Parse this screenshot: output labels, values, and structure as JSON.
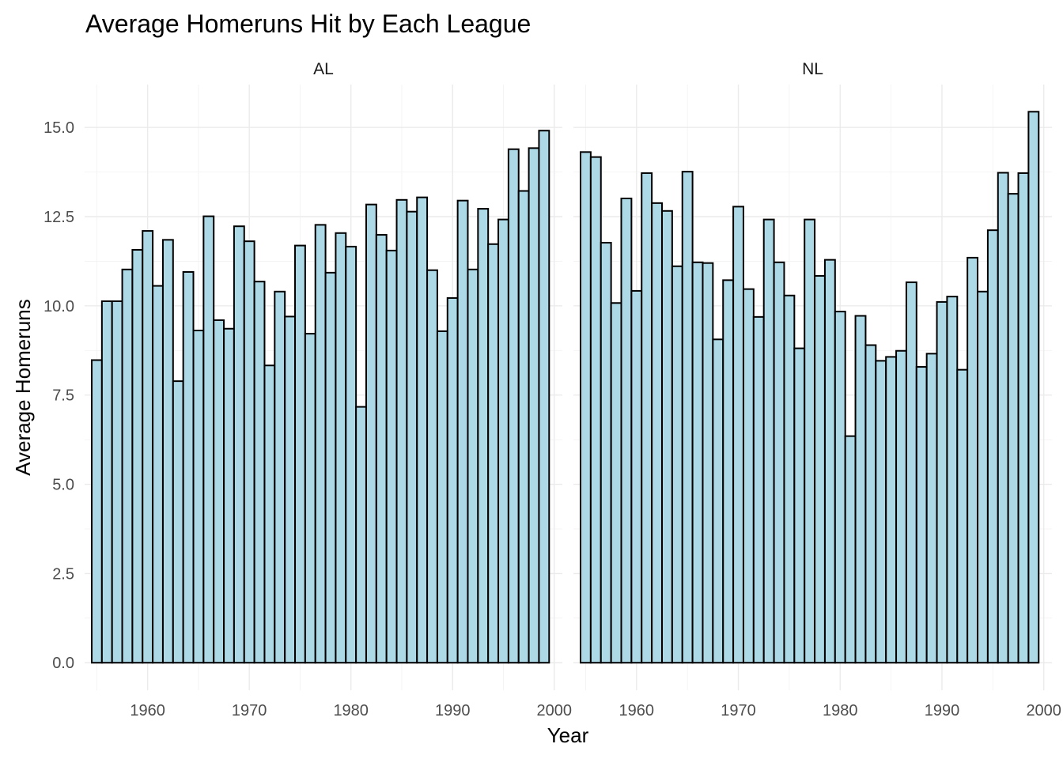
{
  "chart_data": {
    "type": "bar",
    "title": "Average Homeruns Hit by Each League",
    "xlabel": "Year",
    "ylabel": "Average Homeruns",
    "x_ticks": [
      "1960",
      "1970",
      "1980",
      "1990",
      "2000"
    ],
    "y_ticks": [
      "0.0",
      "2.5",
      "5.0",
      "7.5",
      "10.0",
      "12.5",
      "15.0"
    ],
    "xlim": [
      1953.8,
      2000.8
    ],
    "ylim": [
      -0.77,
      16.2
    ],
    "grid": true,
    "colors": {
      "bar_fill": "#add8e6",
      "bar_outline": "#000000",
      "grid": "#ebebeb"
    },
    "facets": [
      {
        "label": "AL",
        "x": [
          1955,
          1956,
          1957,
          1958,
          1959,
          1960,
          1961,
          1962,
          1963,
          1964,
          1965,
          1966,
          1967,
          1968,
          1969,
          1970,
          1971,
          1972,
          1973,
          1974,
          1975,
          1976,
          1977,
          1978,
          1979,
          1980,
          1981,
          1982,
          1983,
          1984,
          1985,
          1986,
          1987,
          1988,
          1989,
          1990,
          1991,
          1992,
          1993,
          1994,
          1995,
          1996,
          1997,
          1998,
          1999
        ],
        "values": [
          8.48,
          10.13,
          10.13,
          11.02,
          11.57,
          12.1,
          10.56,
          11.85,
          7.89,
          10.95,
          9.31,
          12.51,
          9.6,
          9.36,
          12.23,
          11.81,
          10.68,
          8.33,
          10.4,
          9.7,
          11.69,
          9.22,
          12.27,
          10.93,
          12.04,
          11.66,
          7.17,
          12.84,
          11.99,
          11.55,
          12.97,
          12.64,
          13.04,
          11.0,
          9.29,
          10.22,
          12.95,
          11.02,
          12.72,
          11.73,
          12.42,
          14.39,
          13.22,
          14.42,
          14.91
        ]
      },
      {
        "label": "NL",
        "x": [
          1955,
          1956,
          1957,
          1958,
          1959,
          1960,
          1961,
          1962,
          1963,
          1964,
          1965,
          1966,
          1967,
          1968,
          1969,
          1970,
          1971,
          1972,
          1973,
          1974,
          1975,
          1976,
          1977,
          1978,
          1979,
          1980,
          1981,
          1982,
          1983,
          1984,
          1985,
          1986,
          1987,
          1988,
          1989,
          1990,
          1991,
          1992,
          1993,
          1994,
          1995,
          1996,
          1997,
          1998,
          1999
        ],
        "values": [
          14.31,
          14.17,
          11.77,
          10.08,
          13.01,
          10.42,
          13.72,
          12.88,
          12.66,
          11.11,
          13.76,
          11.22,
          11.2,
          9.06,
          10.72,
          12.78,
          10.47,
          9.69,
          12.42,
          11.22,
          10.29,
          8.81,
          12.42,
          10.84,
          11.29,
          9.84,
          6.35,
          9.72,
          8.9,
          8.46,
          8.57,
          8.74,
          10.66,
          8.29,
          8.66,
          10.11,
          10.26,
          8.21,
          11.35,
          10.4,
          12.12,
          13.73,
          13.14,
          13.72,
          15.44
        ]
      }
    ]
  }
}
